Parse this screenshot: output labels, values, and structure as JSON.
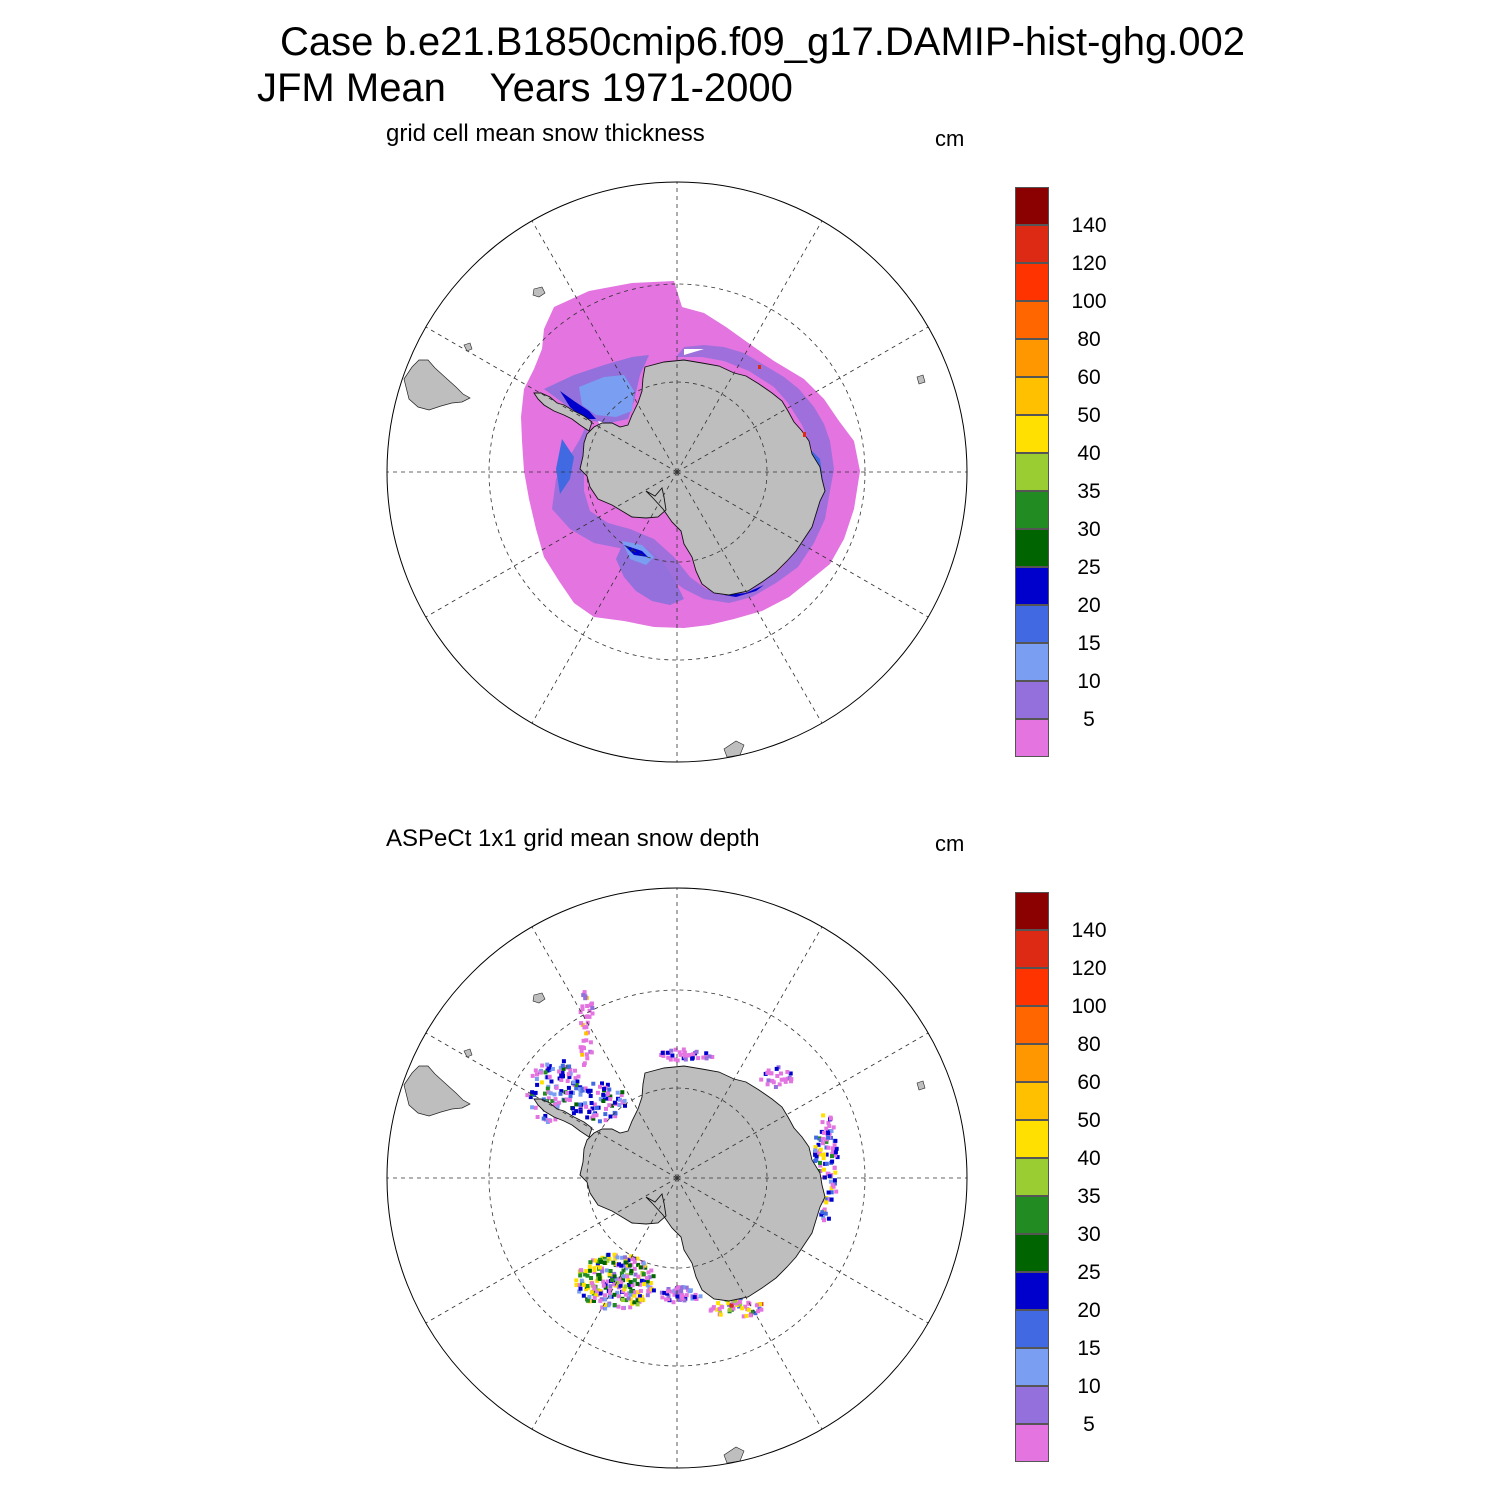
{
  "header": {
    "title_line1": "Case b.e21.B1850cmip6.f09_g17.DAMIP-hist-ghg.002",
    "title_line2": "JFM Mean    Years 1971-2000"
  },
  "colors": {
    "land": "#bebebe",
    "levels": [
      "#e374e0",
      "#9370db",
      "#7a9ff2",
      "#4169e1",
      "#0000cd",
      "#006400",
      "#228b22",
      "#9acd32",
      "#ffe000",
      "#ffc000",
      "#ff9800",
      "#ff6600",
      "#ff3300",
      "#dd2a14",
      "#8b0000"
    ]
  },
  "colorbar_labels": [
    "5",
    "10",
    "15",
    "20",
    "25",
    "30",
    "35",
    "40",
    "50",
    "60",
    "80",
    "100",
    "120",
    "140"
  ],
  "panels": [
    {
      "title": "grid cell mean snow thickness",
      "unit": "cm"
    },
    {
      "title": "ASPeCt 1x1 grid mean snow depth",
      "unit": "cm"
    }
  ]
}
